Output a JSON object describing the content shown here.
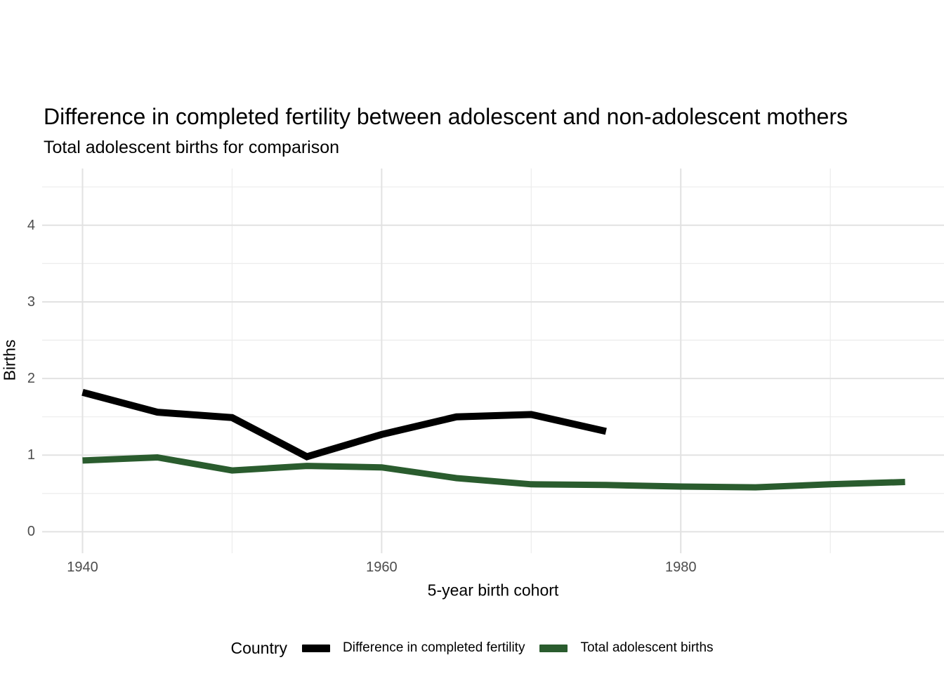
{
  "chart": {
    "title": "Difference in completed fertility between adolescent and non-adolescent mothers",
    "subtitle": "Total adolescent births for comparison",
    "x_axis_label": "5-year birth cohort",
    "y_axis_label": "Births"
  },
  "legend": {
    "title": "Country",
    "items": [
      {
        "label": "Difference in completed fertility",
        "color": "#000000"
      },
      {
        "label": "Total adolescent births",
        "color": "#2a5c2e"
      }
    ]
  },
  "chart_data": {
    "type": "line",
    "title": "Difference in completed fertility between adolescent and non-adolescent mothers",
    "subtitle": "Total adolescent births for comparison",
    "xlabel": "5-year birth cohort",
    "ylabel": "Births",
    "series": [
      {
        "name": "Difference in completed fertility",
        "color": "#000000",
        "x": [
          1940,
          1945,
          1950,
          1955,
          1960,
          1965,
          1970,
          1975
        ],
        "values": [
          1.82,
          1.56,
          1.49,
          0.98,
          1.27,
          1.5,
          1.53,
          1.31
        ]
      },
      {
        "name": "Total adolescent births",
        "color": "#2a5c2e",
        "x": [
          1940,
          1945,
          1950,
          1955,
          1960,
          1965,
          1970,
          1975,
          1980,
          1985,
          1990,
          1995
        ],
        "values": [
          0.93,
          0.97,
          0.8,
          0.86,
          0.84,
          0.7,
          0.62,
          0.61,
          0.59,
          0.58,
          0.62,
          0.65
        ]
      }
    ],
    "xlim": [
      1937.3,
      1997.6
    ],
    "ylim": [
      -0.28,
      4.74
    ],
    "x_ticks": {
      "major": [
        1940,
        1960,
        1980
      ],
      "minor": [
        1950,
        1970,
        1990
      ]
    },
    "y_ticks": {
      "major": [
        0,
        1,
        2,
        3,
        4
      ],
      "minor": [
        0.5,
        1.5,
        2.5,
        3.5,
        4.5
      ]
    },
    "x_tick_labels": [
      "1940",
      "1960",
      "1980"
    ],
    "y_tick_labels": [
      "0",
      "1",
      "2",
      "3",
      "4"
    ],
    "grid": true,
    "legend_position": "bottom",
    "background_color": "#ffffff",
    "tick_label_color": "#4d4d4d"
  }
}
